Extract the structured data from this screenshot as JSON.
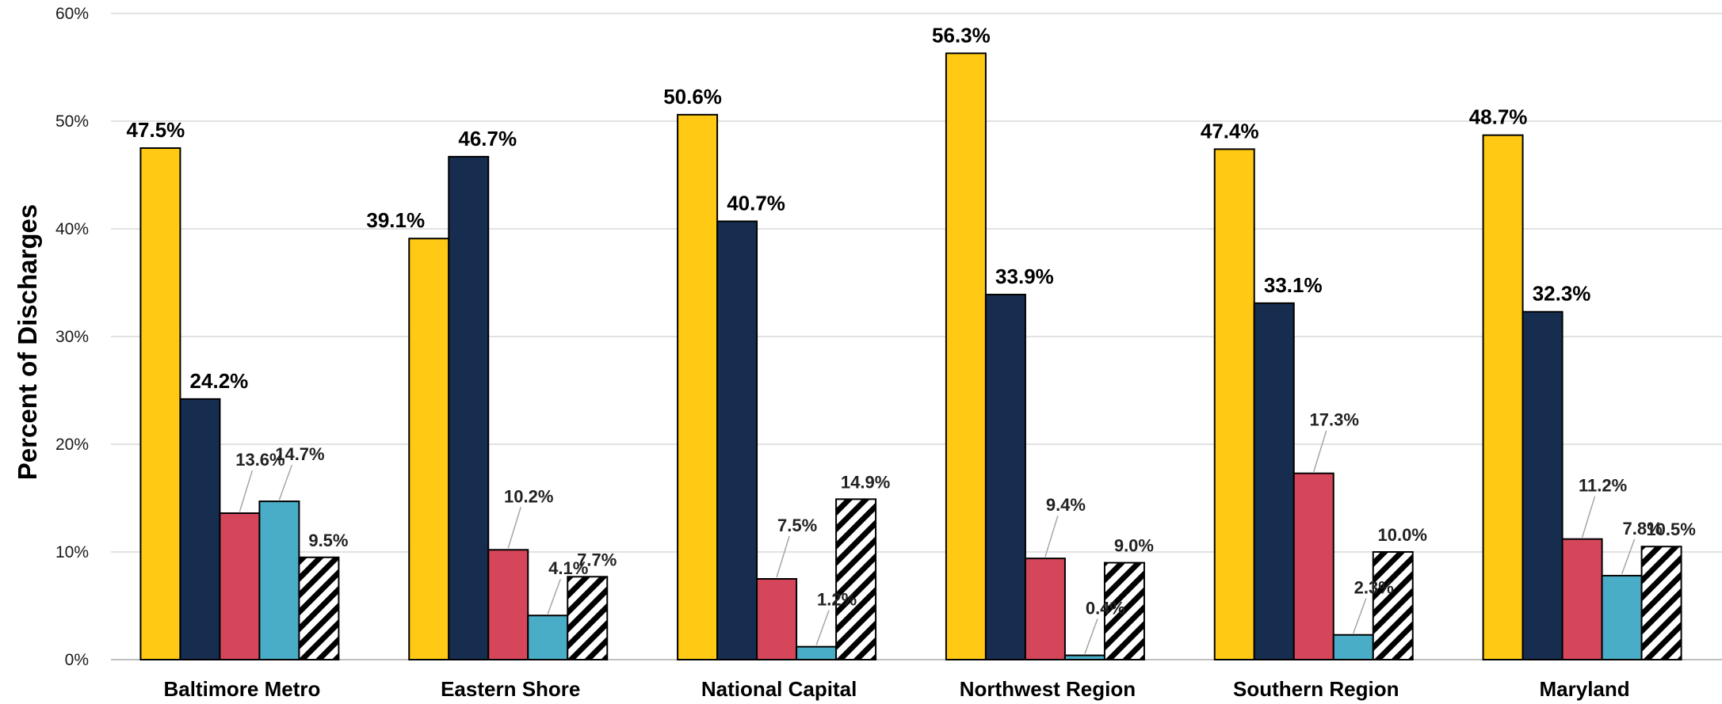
{
  "chart_data": {
    "type": "bar",
    "ylabel": "Percent of Discharges",
    "ylim": [
      0,
      60
    ],
    "ytick_labels": [
      "0%",
      "10%",
      "20%",
      "30%",
      "40%",
      "50%",
      "60%"
    ],
    "grid": true,
    "legend": "none",
    "categories": [
      "Baltimore Metro",
      "Eastern Shore",
      "National Capital",
      "Northwest Region",
      "Southern Region",
      "Maryland"
    ],
    "series": [
      {
        "color": "#FFC914",
        "pattern": "solid",
        "values": [
          47.5,
          39.1,
          50.6,
          56.3,
          47.4,
          48.7
        ],
        "labels": [
          "47.5%",
          "39.1%",
          "50.6%",
          "56.3%",
          "47.4%",
          "48.7%"
        ]
      },
      {
        "color": "#162D4F",
        "pattern": "solid",
        "values": [
          24.2,
          46.7,
          40.7,
          33.9,
          33.1,
          32.3
        ],
        "labels": [
          "24.2%",
          "46.7%",
          "40.7%",
          "33.9%",
          "33.1%",
          "32.3%"
        ]
      },
      {
        "color": "#D6465A",
        "pattern": "solid",
        "values": [
          13.6,
          10.2,
          7.5,
          9.4,
          17.3,
          11.2
        ],
        "labels": [
          "13.6%",
          "10.2%",
          "7.5%",
          "9.4%",
          "17.3%",
          "11.2%"
        ]
      },
      {
        "color": "#4AADC7",
        "pattern": "solid",
        "values": [
          14.7,
          4.1,
          1.2,
          0.4,
          2.3,
          7.8
        ],
        "labels": [
          "14.7%",
          "4.1%",
          "1.2%",
          "0.4%",
          "2.3%",
          "7.8%"
        ]
      },
      {
        "color": "#000000",
        "pattern": "diagonal-stripes",
        "values": [
          9.5,
          7.7,
          14.9,
          9.0,
          10.0,
          10.5
        ],
        "labels": [
          "9.5%",
          "7.7%",
          "14.9%",
          "9.0%",
          "10.0%",
          "10.5%"
        ]
      }
    ]
  }
}
